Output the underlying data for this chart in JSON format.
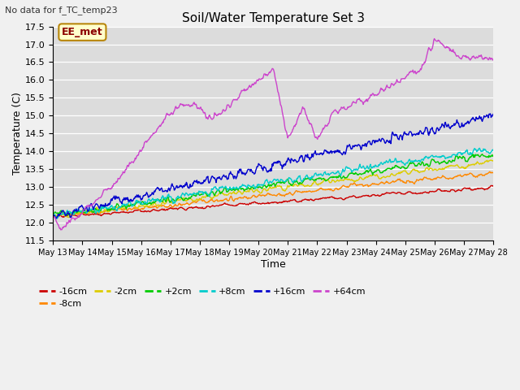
{
  "title": "Soil/Water Temperature Set 3",
  "xlabel": "Time",
  "ylabel": "Temperature (C)",
  "ylim": [
    11.5,
    17.5
  ],
  "plot_bg": "#dcdcdc",
  "fig_bg": "#f0f0f0",
  "note": "No data for f_TC_temp23",
  "station_label": "EE_met",
  "series_colors": {
    "-16cm": "#cc0000",
    "-8cm": "#ff8800",
    "-2cm": "#ddcc00",
    "+2cm": "#00cc00",
    "+8cm": "#00cccc",
    "+16cm": "#0000cc",
    "+64cm": "#cc44cc"
  },
  "x_tick_labels": [
    "May 13",
    "May 14",
    "May 15",
    "May 16",
    "May 17",
    "May 18",
    "May 19",
    "May 20",
    "May 21",
    "May 22",
    "May 23",
    "May 24",
    "May 25",
    "May 26",
    "May 27",
    "May 28"
  ],
  "n_points": 800
}
